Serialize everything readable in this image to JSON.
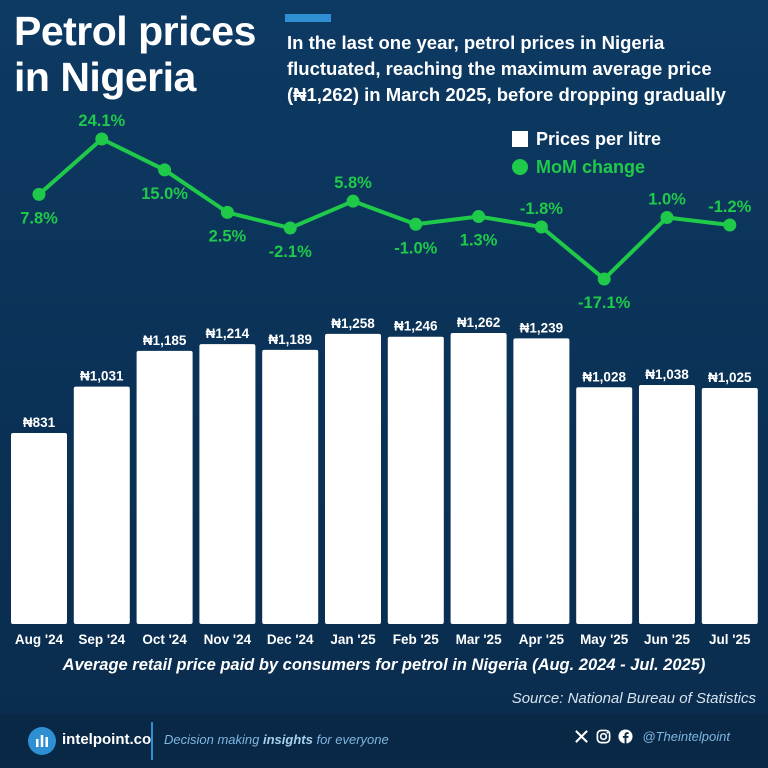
{
  "header": {
    "title_line1": "Petrol prices",
    "title_line2": "in Nigeria",
    "subtitle": "In the last one year, petrol prices in Nigeria fluctuated, reaching the maximum average price (₦1,262) in March 2025, before dropping gradually"
  },
  "legend": {
    "prices_label": "Prices per litre",
    "mom_label": "MoM change"
  },
  "colors": {
    "bar": "#ffffff",
    "line": "#1fc94a",
    "background": "#0b3358",
    "accent": "#2e8fd3"
  },
  "chart_data": {
    "type": "bar",
    "categories": [
      "Aug '24",
      "Sep '24",
      "Oct '24",
      "Nov '24",
      "Dec '24",
      "Jan '25",
      "Feb '25",
      "Mar '25",
      "Apr '25",
      "May '25",
      "Jun '25",
      "Jul '25"
    ],
    "series": [
      {
        "name": "Prices per litre",
        "values": [
          831,
          1031,
          1185,
          1214,
          1189,
          1258,
          1246,
          1262,
          1239,
          1028,
          1038,
          1025
        ],
        "labels": [
          "₦831",
          "₦1,031",
          "₦1,185",
          "₦1,214",
          "₦1,189",
          "₦1,258",
          "₦1,246",
          "₦1,262",
          "₦1,239",
          "₦1,028",
          "₦1,038",
          "₦1,025"
        ]
      },
      {
        "name": "MoM change",
        "type": "line",
        "values": [
          7.8,
          24.1,
          15.0,
          2.5,
          -2.1,
          5.8,
          -1.0,
          1.3,
          -1.8,
          -17.1,
          1.0,
          -1.2
        ],
        "labels": [
          "7.8%",
          "24.1%",
          "15.0%",
          "2.5%",
          "-2.1%",
          "5.8%",
          "-1.0%",
          "1.3%",
          "-1.8%",
          "-17.1%",
          "1.0%",
          "-1.2%"
        ],
        "label_positions": [
          "below",
          "above",
          "below",
          "below",
          "below",
          "above",
          "below",
          "below",
          "above",
          "below",
          "above",
          "above"
        ]
      }
    ]
  },
  "caption": "Average retail price paid by consumers for petrol in Nigeria (Aug. 2024 - Jul. 2025)",
  "source": "Source: National Bureau of Statistics",
  "footer": {
    "brand": "intelpoint.co",
    "tagline_pre": "Decision making ",
    "tagline_bold": "insights",
    "tagline_post": " for everyone",
    "social_handle": "@Theintelpoint",
    "social_icons": [
      "x-icon",
      "instagram-icon",
      "facebook-icon"
    ]
  }
}
